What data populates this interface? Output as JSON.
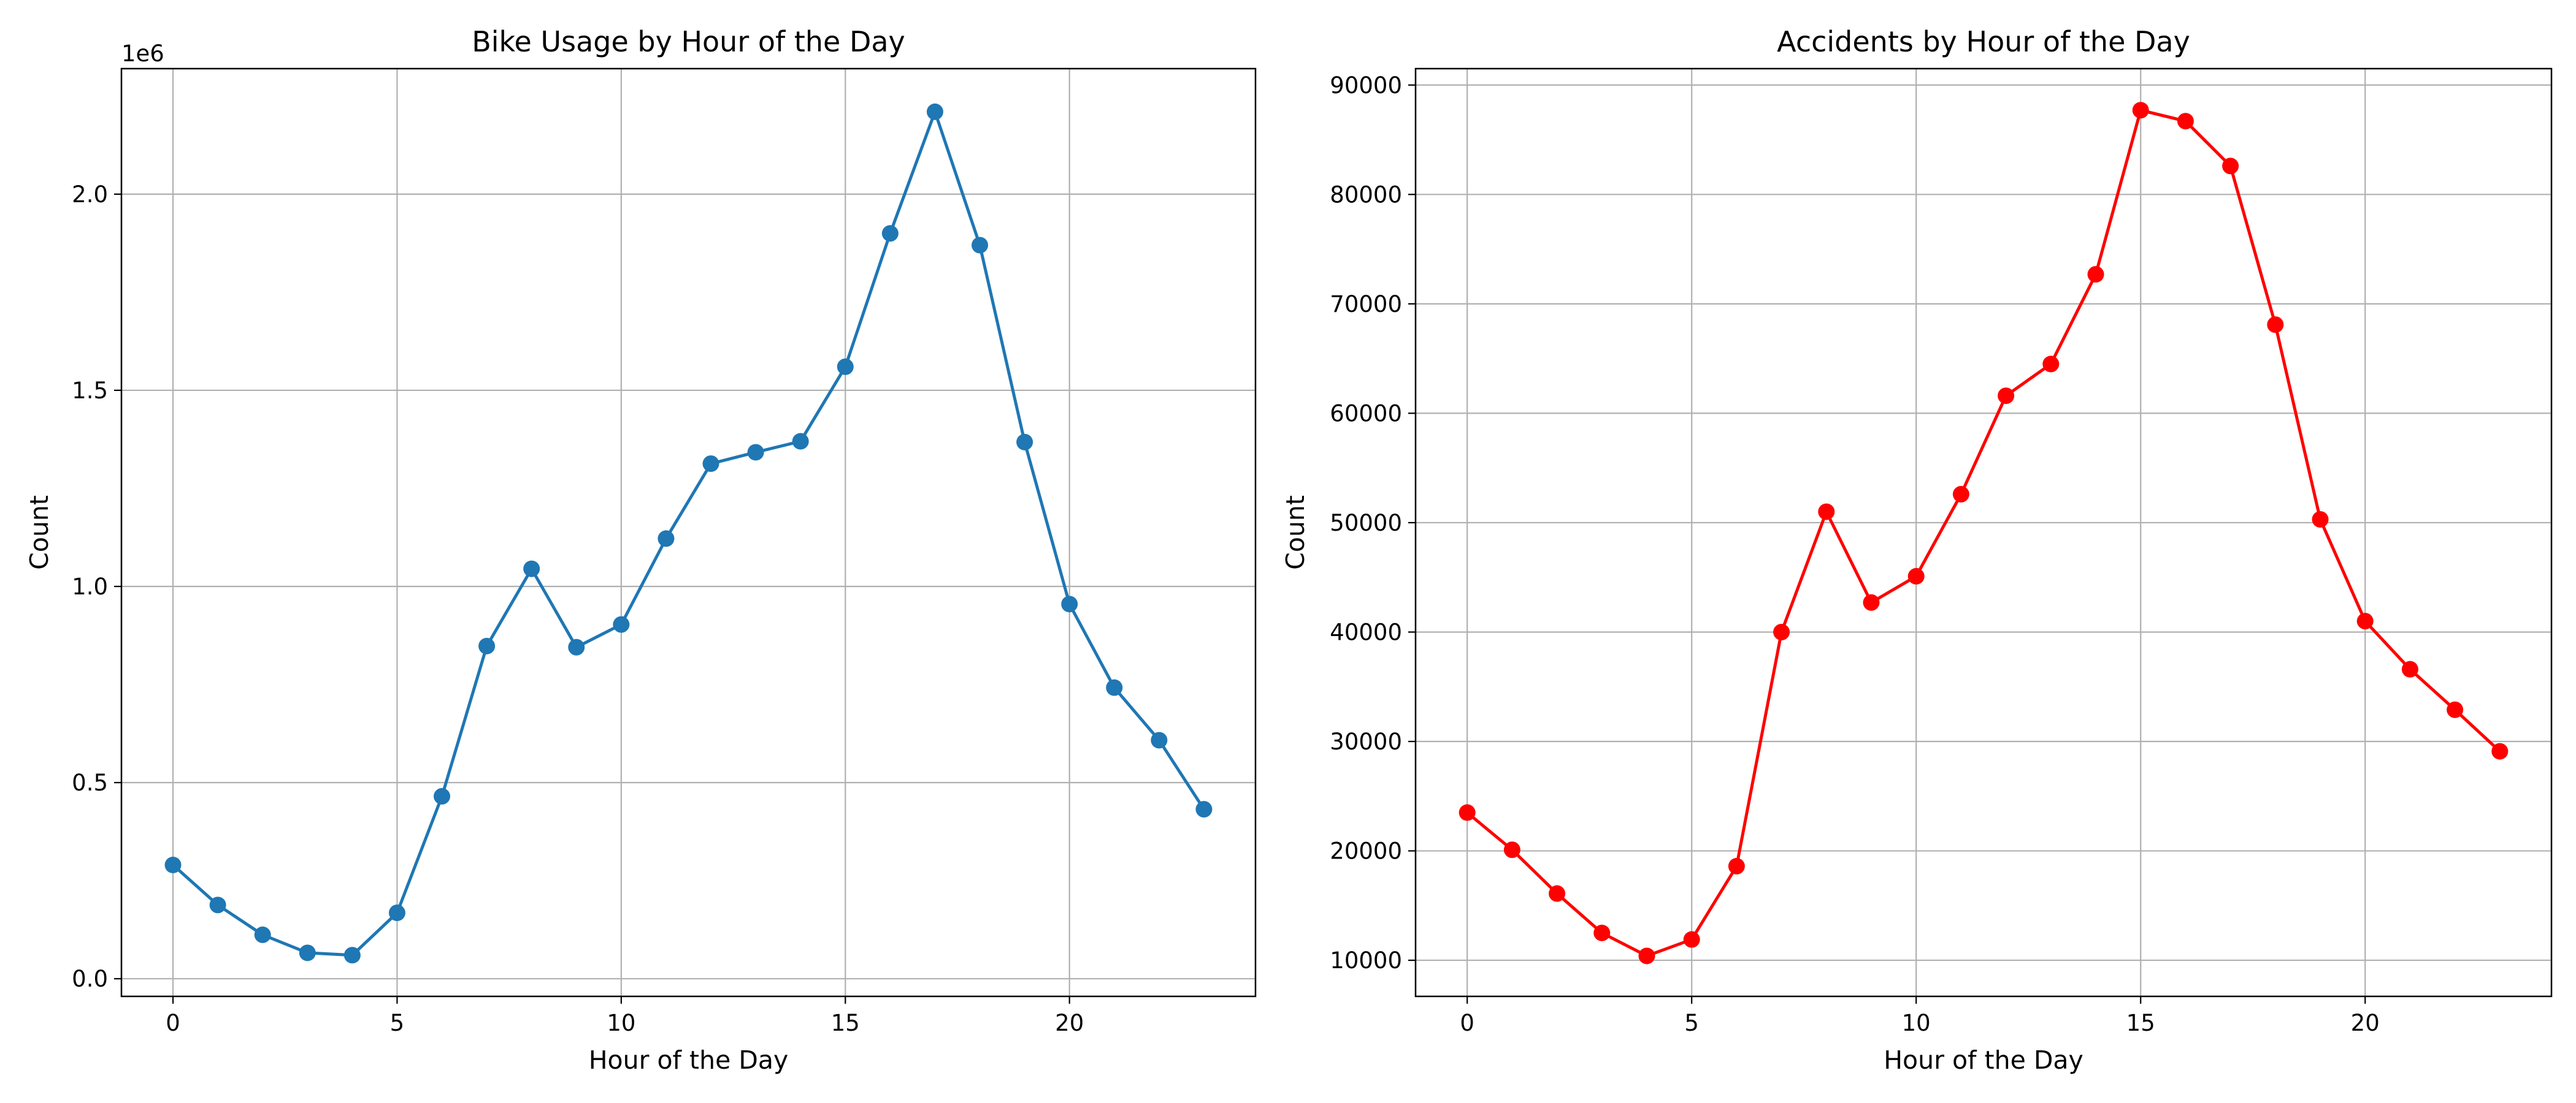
{
  "chart_data": [
    {
      "type": "line",
      "title": "Bike Usage by Hour of the Day",
      "xlabel": "Hour of the Day",
      "ylabel": "Count",
      "offset_label": "1e6",
      "xlim": [
        -1.15,
        24.15
      ],
      "ylim": [
        -45000,
        2320000
      ],
      "xticks": [
        0,
        5,
        10,
        15,
        20
      ],
      "xtick_labels": [
        "0",
        "5",
        "10",
        "15",
        "20"
      ],
      "yticks": [
        0,
        500000,
        1000000,
        1500000,
        2000000
      ],
      "ytick_labels": [
        "0.0",
        "0.5",
        "1.0",
        "1.5",
        "2.0"
      ],
      "grid": true,
      "color": "#1f77b4",
      "x": [
        0,
        1,
        2,
        3,
        4,
        5,
        6,
        7,
        8,
        9,
        10,
        11,
        12,
        13,
        14,
        15,
        16,
        17,
        18,
        19,
        20,
        21,
        22,
        23
      ],
      "values": [
        290000,
        188000,
        112000,
        66000,
        60000,
        168000,
        465000,
        848000,
        1045000,
        845000,
        903000,
        1122000,
        1313000,
        1342000,
        1370000,
        1560000,
        1900000,
        2210000,
        1870000,
        1368000,
        955000,
        742000,
        608000,
        432000
      ]
    },
    {
      "type": "line",
      "title": "Accidents by Hour of the Day",
      "xlabel": "Hour of the Day",
      "ylabel": "Count",
      "xlim": [
        -1.15,
        24.15
      ],
      "ylim": [
        6700,
        91500
      ],
      "xticks": [
        0,
        5,
        10,
        15,
        20
      ],
      "xtick_labels": [
        "0",
        "5",
        "10",
        "15",
        "20"
      ],
      "yticks": [
        10000,
        20000,
        30000,
        40000,
        50000,
        60000,
        70000,
        80000,
        90000
      ],
      "ytick_labels": [
        "10000",
        "20000",
        "30000",
        "40000",
        "50000",
        "60000",
        "70000",
        "80000",
        "90000"
      ],
      "grid": true,
      "color": "#ff0000",
      "x": [
        0,
        1,
        2,
        3,
        4,
        5,
        6,
        7,
        8,
        9,
        10,
        11,
        12,
        13,
        14,
        15,
        16,
        17,
        18,
        19,
        20,
        21,
        22,
        23
      ],
      "values": [
        23500,
        20100,
        16100,
        12500,
        10400,
        11900,
        18600,
        40000,
        51000,
        42700,
        45100,
        52600,
        61600,
        64500,
        72700,
        87700,
        86700,
        82600,
        68100,
        50300,
        41000,
        36600,
        32900,
        29100
      ]
    }
  ]
}
